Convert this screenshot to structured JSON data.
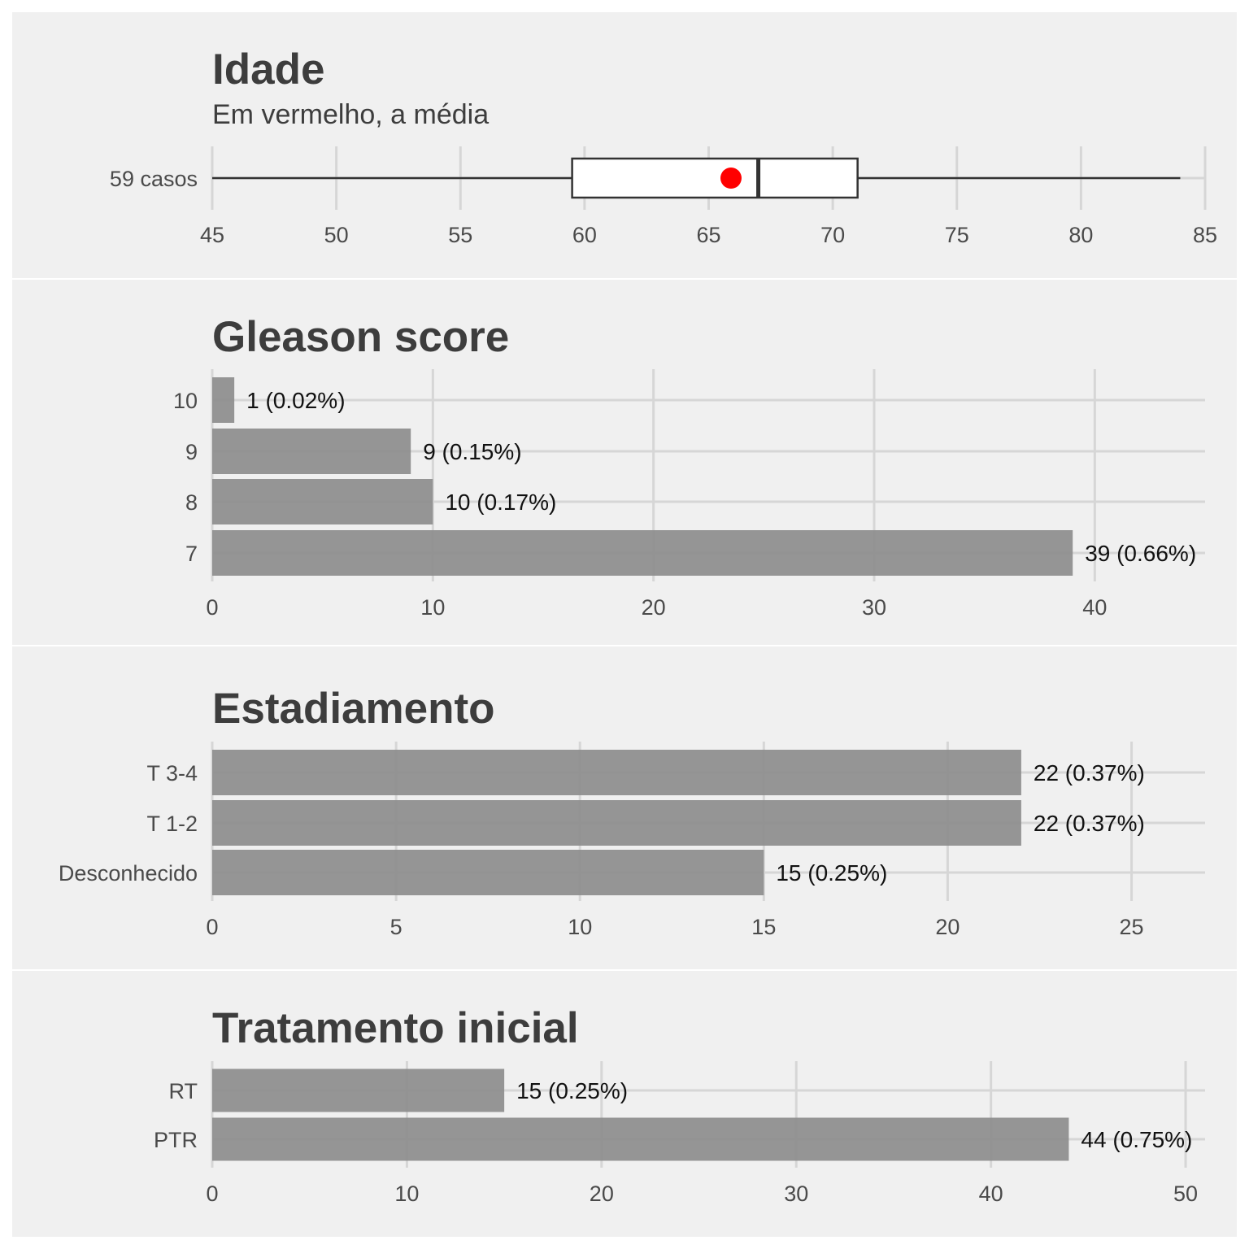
{
  "colors": {
    "panel_background": "#f0f0f0",
    "bar_fill": "#8f8f8f",
    "mean_marker": "#ff0000",
    "text": "#3d3d3d",
    "grid": "#d6d6d6"
  },
  "chart_data": [
    {
      "type": "boxplot",
      "title": "Idade",
      "subtitle": "Em vermelho, a média",
      "category": "59 casos",
      "xlim": [
        45,
        85
      ],
      "x_ticks": [
        45,
        50,
        55,
        60,
        65,
        70,
        75,
        80,
        85
      ],
      "whisker_low": 45,
      "q1": 59.5,
      "median": 67,
      "q3": 71,
      "whisker_high": 84,
      "mean": 65.9,
      "grid": true
    },
    {
      "type": "bar",
      "orientation": "horizontal",
      "title": "Gleason score",
      "categories": [
        "10",
        "9",
        "8",
        "7"
      ],
      "values": [
        1,
        9,
        10,
        39
      ],
      "labels": [
        "1 (0.02%)",
        "9 (0.15%)",
        "10 (0.17%)",
        "39 (0.66%)"
      ],
      "xlim": [
        0,
        45
      ],
      "x_ticks": [
        0,
        10,
        20,
        30,
        40
      ],
      "grid": true
    },
    {
      "type": "bar",
      "orientation": "horizontal",
      "title": "Estadiamento",
      "categories": [
        "T 3-4",
        "T 1-2",
        "Desconhecido"
      ],
      "values": [
        22,
        22,
        15
      ],
      "labels": [
        "22 (0.37%)",
        "22 (0.37%)",
        "15 (0.25%)"
      ],
      "xlim": [
        0,
        27
      ],
      "x_ticks": [
        0,
        5,
        10,
        15,
        20,
        25
      ],
      "grid": true
    },
    {
      "type": "bar",
      "orientation": "horizontal",
      "title": "Tratamento inicial",
      "categories": [
        "RT",
        "PTR"
      ],
      "values": [
        15,
        44
      ],
      "labels": [
        "15 (0.25%)",
        "44 (0.75%)"
      ],
      "xlim": [
        0,
        51
      ],
      "x_ticks": [
        0,
        10,
        20,
        30,
        40,
        50
      ],
      "grid": true
    }
  ]
}
